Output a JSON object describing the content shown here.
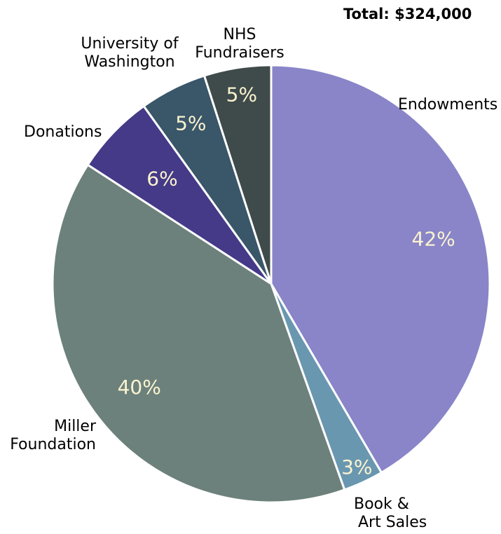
{
  "chart_data": {
    "type": "pie",
    "total_label": "Total: $324,000",
    "slices": [
      {
        "name_lines": [
          "Endowments"
        ],
        "percent": 42,
        "pct_label": "42%",
        "color": "#8985c8"
      },
      {
        "name_lines": [
          "Book &",
          "Art Sales"
        ],
        "percent": 3,
        "pct_label": "3%",
        "color": "#6a97b0"
      },
      {
        "name_lines": [
          "Miller",
          "Foundation"
        ],
        "percent": 40,
        "pct_label": "40%",
        "color": "#6d817c"
      },
      {
        "name_lines": [
          "Donations"
        ],
        "percent": 6,
        "pct_label": "6%",
        "color": "#443a88"
      },
      {
        "name_lines": [
          "University of",
          "Washington"
        ],
        "percent": 5,
        "pct_label": "5%",
        "color": "#3a5669"
      },
      {
        "name_lines": [
          "NHS",
          "Fundraisers"
        ],
        "percent": 5,
        "pct_label": "5%",
        "color": "#3f4a4b"
      }
    ]
  }
}
